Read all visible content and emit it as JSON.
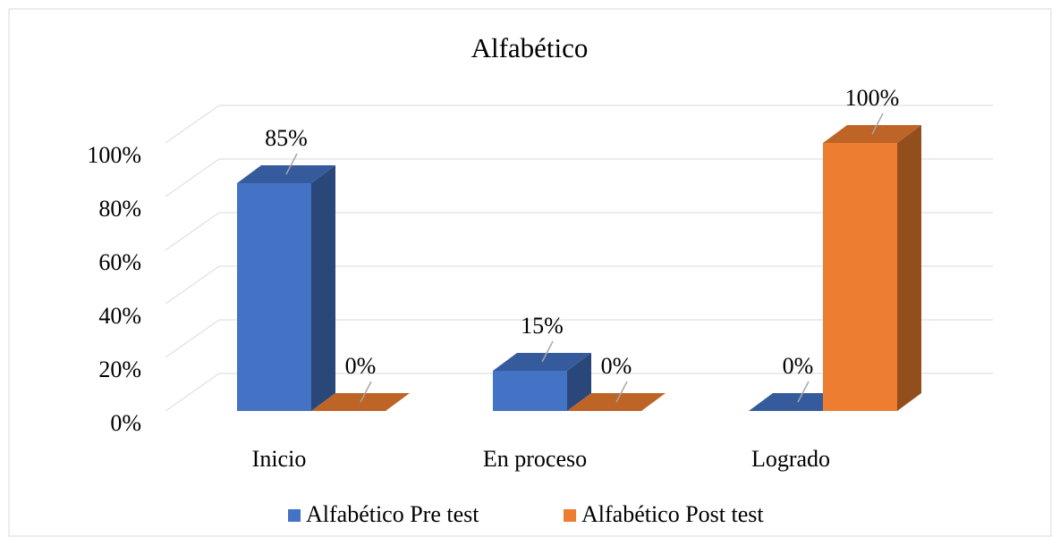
{
  "chart_data": {
    "type": "bar3d",
    "title": "Alfabético",
    "categories": [
      "Inicio",
      "En proceso",
      "Logrado"
    ],
    "series": [
      {
        "name": "Alfabético Pre test",
        "color": "#4472c4",
        "values": [
          85,
          15,
          0
        ],
        "value_labels": [
          "85%",
          "15%",
          "0%"
        ]
      },
      {
        "name": "Alfabético Post test",
        "color": "#ed7d31",
        "values": [
          0,
          0,
          100
        ],
        "value_labels": [
          "0%",
          "0%",
          "100%"
        ]
      }
    ],
    "ylim": [
      0,
      100
    ],
    "yticks": [
      {
        "value": 0,
        "label": "0%"
      },
      {
        "value": 20,
        "label": "20%"
      },
      {
        "value": 40,
        "label": "40%"
      },
      {
        "value": 60,
        "label": "60%"
      },
      {
        "value": 80,
        "label": "80%"
      },
      {
        "value": 100,
        "label": "100%"
      }
    ],
    "grid": true,
    "legend": "bottom"
  }
}
